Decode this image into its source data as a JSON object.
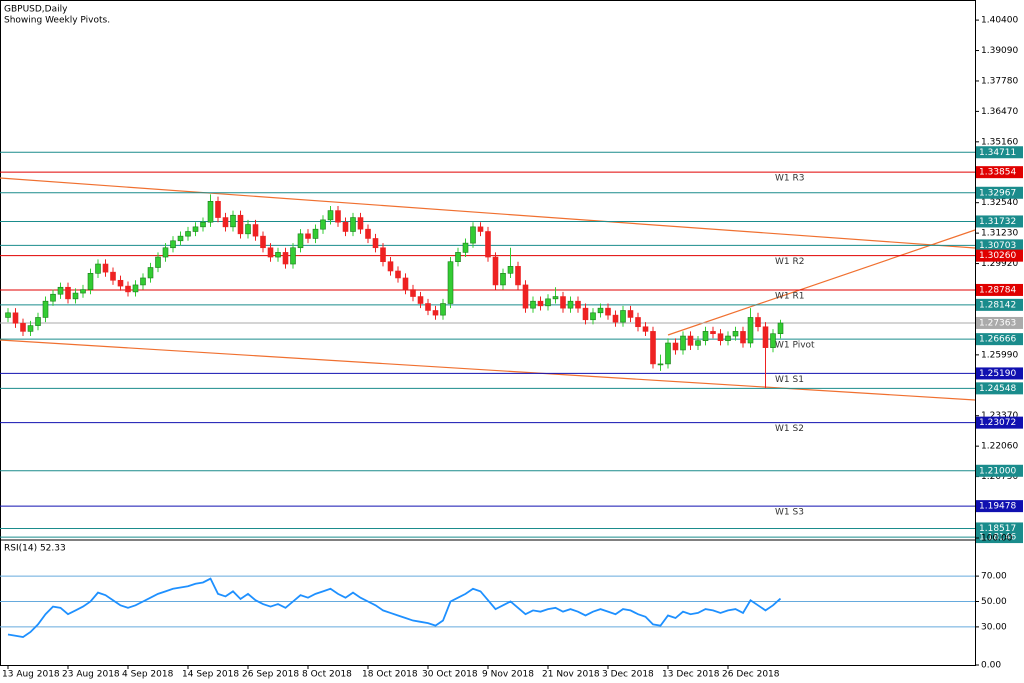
{
  "chart_data": [
    {
      "type": "candlestick",
      "title": "GBPUSD,Daily",
      "subtitle": "Showing Weekly Pivots.",
      "up_color": "#33cc33",
      "down_color": "#ee2222",
      "ylim": [
        1.1802,
        1.4105
      ],
      "yticks": [
        {
          "value": 1.404,
          "label": "1.40400"
        },
        {
          "value": 1.3909,
          "label": "1.39090"
        },
        {
          "value": 1.3778,
          "label": "1.37780"
        },
        {
          "value": 1.3647,
          "label": "1.36470"
        },
        {
          "value": 1.3516,
          "label": "1.35160"
        },
        {
          "value": 1.3254,
          "label": "1.32540"
        },
        {
          "value": 1.3123,
          "label": "1.31230"
        },
        {
          "value": 1.2992,
          "label": "1.29920"
        },
        {
          "value": 1.2599,
          "label": "1.25990"
        },
        {
          "value": 1.2337,
          "label": "1.23370"
        },
        {
          "value": 1.2206,
          "label": "1.22060"
        },
        {
          "value": 1.2075,
          "label": "1.20750"
        }
      ],
      "levels": [
        {
          "value": 1.34711,
          "label": "1.34711",
          "color": "#1a8c8c"
        },
        {
          "value": 1.33854,
          "label": "1.33854",
          "color": "#e00000",
          "name": "W1  R3"
        },
        {
          "value": 1.32967,
          "label": "1.32967",
          "color": "#1a8c8c"
        },
        {
          "value": 1.31732,
          "label": "1.31732",
          "color": "#1a8c8c"
        },
        {
          "value": 1.30703,
          "label": "1.30703",
          "color": "#1a8c8c"
        },
        {
          "value": 1.3026,
          "label": "1.30260",
          "color": "#e00000",
          "name": "W1  R2"
        },
        {
          "value": 1.28784,
          "label": "1.28784",
          "color": "#e00000",
          "name": "W1  R1"
        },
        {
          "value": 1.28142,
          "label": "1.28142",
          "color": "#1a8c8c"
        },
        {
          "value": 1.27363,
          "label": "1.27363",
          "color": "#aaaaaa"
        },
        {
          "value": 1.26666,
          "label": "1.26666",
          "color": "#1a8c8c",
          "name": "W1  Pivot"
        },
        {
          "value": 1.2519,
          "label": "1.25190",
          "color": "#1010b0",
          "name": "W1  S1"
        },
        {
          "value": 1.24548,
          "label": "1.24548",
          "color": "#1a8c8c"
        },
        {
          "value": 1.23072,
          "label": "1.23072",
          "color": "#1010b0",
          "name": "W1  S2"
        },
        {
          "value": 1.21,
          "label": "1.21000",
          "color": "#1a8c8c"
        },
        {
          "value": 1.19478,
          "label": "1.19478",
          "color": "#1010b0",
          "name": "W1  S3"
        },
        {
          "value": 1.18517,
          "label": "1.18517",
          "color": "#1a8c8c"
        },
        {
          "value": 1.18146,
          "label": "1.18146",
          "color": "#1a8c8c"
        }
      ],
      "categories": [
        "13 Aug 2018",
        null,
        null,
        null,
        null,
        null,
        null,
        null,
        "23 Aug 2018",
        null,
        null,
        null,
        null,
        null,
        null,
        null,
        "4 Sep 2018",
        null,
        null,
        null,
        null,
        null,
        null,
        null,
        "14 Sep 2018",
        null,
        null,
        null,
        null,
        null,
        null,
        null,
        "26 Sep 2018",
        null,
        null,
        null,
        null,
        null,
        null,
        null,
        "8 Oct 2018",
        null,
        null,
        null,
        null,
        null,
        null,
        null,
        "18 Oct 2018",
        null,
        null,
        null,
        null,
        null,
        null,
        null,
        "30 Oct 2018",
        null,
        null,
        null,
        null,
        null,
        null,
        null,
        "9 Nov 2018",
        null,
        null,
        null,
        null,
        null,
        null,
        null,
        "21 Nov 2018",
        null,
        null,
        null,
        null,
        null,
        null,
        null,
        "3 Dec 2018",
        null,
        null,
        null,
        null,
        null,
        null,
        null,
        "13 Dec 2018",
        null,
        null,
        null,
        null,
        null,
        null,
        null,
        "26 Dec 2018",
        null,
        null,
        null,
        null,
        null,
        null,
        null
      ],
      "ohlc": [
        [
          1.276,
          1.28,
          1.274,
          1.278
        ],
        [
          1.278,
          1.28,
          1.2715,
          1.2735
        ],
        [
          1.2735,
          1.2755,
          1.268,
          1.27
        ],
        [
          1.27,
          1.2745,
          1.268,
          1.2725
        ],
        [
          1.2725,
          1.278,
          1.2705,
          1.276
        ],
        [
          1.276,
          1.285,
          1.274,
          1.283
        ],
        [
          1.283,
          1.288,
          1.281,
          1.286
        ],
        [
          1.286,
          1.291,
          1.284,
          1.289
        ],
        [
          1.289,
          1.291,
          1.282,
          1.284
        ],
        [
          1.284,
          1.2885,
          1.282,
          1.2865
        ],
        [
          1.2865,
          1.29,
          1.2845,
          1.288
        ],
        [
          1.288,
          1.297,
          1.286,
          1.295
        ],
        [
          1.295,
          1.301,
          1.293,
          1.299
        ],
        [
          1.299,
          1.301,
          1.2935,
          1.2955
        ],
        [
          1.2955,
          1.2975,
          1.29,
          1.292
        ],
        [
          1.292,
          1.294,
          1.2875,
          1.2895
        ],
        [
          1.2895,
          1.2915,
          1.285,
          1.287
        ],
        [
          1.287,
          1.292,
          1.285,
          1.29
        ],
        [
          1.29,
          1.295,
          1.288,
          1.293
        ],
        [
          1.293,
          1.2995,
          1.291,
          1.2975
        ],
        [
          1.2975,
          1.304,
          1.2955,
          1.302
        ],
        [
          1.302,
          1.308,
          1.3,
          1.306
        ],
        [
          1.306,
          1.311,
          1.304,
          1.309
        ],
        [
          1.309,
          1.313,
          1.307,
          1.311
        ],
        [
          1.311,
          1.315,
          1.309,
          1.313
        ],
        [
          1.313,
          1.317,
          1.311,
          1.315
        ],
        [
          1.315,
          1.319,
          1.313,
          1.317
        ],
        [
          1.317,
          1.329,
          1.315,
          1.326
        ],
        [
          1.326,
          1.328,
          1.317,
          1.319
        ],
        [
          1.319,
          1.321,
          1.313,
          1.315
        ],
        [
          1.315,
          1.322,
          1.313,
          1.32
        ],
        [
          1.32,
          1.322,
          1.31,
          1.312
        ],
        [
          1.312,
          1.318,
          1.31,
          1.316
        ],
        [
          1.316,
          1.318,
          1.309,
          1.311
        ],
        [
          1.311,
          1.313,
          1.304,
          1.306
        ],
        [
          1.306,
          1.308,
          1.3,
          1.302
        ],
        [
          1.302,
          1.306,
          1.3,
          1.304
        ],
        [
          1.304,
          1.306,
          1.297,
          1.299
        ],
        [
          1.299,
          1.308,
          1.297,
          1.306
        ],
        [
          1.306,
          1.314,
          1.304,
          1.312
        ],
        [
          1.312,
          1.314,
          1.308,
          1.31
        ],
        [
          1.31,
          1.316,
          1.308,
          1.314
        ],
        [
          1.314,
          1.32,
          1.312,
          1.318
        ],
        [
          1.318,
          1.324,
          1.316,
          1.322
        ],
        [
          1.322,
          1.324,
          1.315,
          1.317
        ],
        [
          1.317,
          1.319,
          1.311,
          1.313
        ],
        [
          1.313,
          1.321,
          1.311,
          1.319
        ],
        [
          1.319,
          1.321,
          1.312,
          1.314
        ],
        [
          1.314,
          1.316,
          1.308,
          1.31
        ],
        [
          1.31,
          1.312,
          1.304,
          1.306
        ],
        [
          1.306,
          1.308,
          1.298,
          1.3
        ],
        [
          1.3,
          1.302,
          1.294,
          1.296
        ],
        [
          1.296,
          1.298,
          1.291,
          1.293
        ],
        [
          1.293,
          1.295,
          1.286,
          1.288
        ],
        [
          1.288,
          1.29,
          1.283,
          1.285
        ],
        [
          1.285,
          1.287,
          1.28,
          1.282
        ],
        [
          1.282,
          1.284,
          1.277,
          1.279
        ],
        [
          1.279,
          1.281,
          1.275,
          1.277
        ],
        [
          1.277,
          1.284,
          1.275,
          1.282
        ],
        [
          1.282,
          1.302,
          1.28,
          1.3
        ],
        [
          1.3,
          1.306,
          1.298,
          1.304
        ],
        [
          1.304,
          1.31,
          1.302,
          1.308
        ],
        [
          1.308,
          1.317,
          1.306,
          1.315
        ],
        [
          1.315,
          1.317,
          1.311,
          1.313
        ],
        [
          1.313,
          1.315,
          1.3,
          1.302
        ],
        [
          1.302,
          1.304,
          1.288,
          1.29
        ],
        [
          1.29,
          1.297,
          1.288,
          1.295
        ],
        [
          1.295,
          1.306,
          1.293,
          1.298
        ],
        [
          1.298,
          1.3,
          1.288,
          1.29
        ],
        [
          1.29,
          1.292,
          1.278,
          1.28
        ],
        [
          1.28,
          1.285,
          1.278,
          1.283
        ],
        [
          1.283,
          1.285,
          1.279,
          1.281
        ],
        [
          1.281,
          1.286,
          1.279,
          1.284
        ],
        [
          1.284,
          1.289,
          1.282,
          1.285
        ],
        [
          1.285,
          1.287,
          1.278,
          1.28
        ],
        [
          1.28,
          1.285,
          1.278,
          1.283
        ],
        [
          1.283,
          1.285,
          1.278,
          1.28
        ],
        [
          1.28,
          1.282,
          1.273,
          1.275
        ],
        [
          1.275,
          1.28,
          1.273,
          1.278
        ],
        [
          1.278,
          1.282,
          1.276,
          1.28
        ],
        [
          1.28,
          1.282,
          1.275,
          1.277
        ],
        [
          1.277,
          1.279,
          1.272,
          1.274
        ],
        [
          1.274,
          1.281,
          1.272,
          1.279
        ],
        [
          1.279,
          1.281,
          1.274,
          1.276
        ],
        [
          1.276,
          1.278,
          1.27,
          1.272
        ],
        [
          1.272,
          1.274,
          1.268,
          1.27
        ],
        [
          1.27,
          1.272,
          1.254,
          1.256
        ],
        [
          1.256,
          1.26,
          1.253,
          1.256
        ],
        [
          1.256,
          1.267,
          1.254,
          1.265
        ],
        [
          1.265,
          1.267,
          1.26,
          1.262
        ],
        [
          1.262,
          1.27,
          1.26,
          1.268
        ],
        [
          1.268,
          1.27,
          1.262,
          1.264
        ],
        [
          1.264,
          1.268,
          1.262,
          1.266
        ],
        [
          1.266,
          1.272,
          1.264,
          1.27
        ],
        [
          1.27,
          1.272,
          1.267,
          1.269
        ],
        [
          1.269,
          1.271,
          1.264,
          1.266
        ],
        [
          1.266,
          1.27,
          1.264,
          1.268
        ],
        [
          1.268,
          1.272,
          1.266,
          1.27
        ],
        [
          1.27,
          1.272,
          1.263,
          1.265
        ],
        [
          1.265,
          1.28,
          1.263,
          1.276
        ],
        [
          1.276,
          1.278,
          1.27,
          1.272
        ],
        [
          1.272,
          1.274,
          1.2455,
          1.263
        ],
        [
          1.263,
          1.271,
          1.261,
          1.269
        ],
        [
          1.269,
          1.275,
          1.267,
          1.2736
        ]
      ]
    },
    {
      "type": "line",
      "title": "RSI(14) 52.33",
      "color": "#1e90ff",
      "level_color": "#66aadd",
      "ylim": [
        0,
        100
      ],
      "yticks": [
        {
          "value": 100,
          "label": "100.00"
        },
        {
          "value": 70,
          "label": "70.00"
        },
        {
          "value": 50,
          "label": "50.00"
        },
        {
          "value": 30,
          "label": "30.00"
        },
        {
          "value": 0,
          "label": "0.00"
        }
      ],
      "levels": [
        70,
        50,
        30
      ],
      "values": [
        24,
        23,
        22,
        26,
        32,
        40,
        46,
        45,
        40,
        43,
        46,
        50,
        57,
        55,
        51,
        47,
        45,
        47,
        50,
        53,
        56,
        58,
        60,
        61,
        62,
        64,
        65,
        68,
        56,
        54,
        58,
        52,
        56,
        51,
        48,
        46,
        48,
        45,
        50,
        55,
        53,
        56,
        58,
        60,
        56,
        53,
        57,
        53,
        50,
        47,
        43,
        41,
        39,
        37,
        35,
        34,
        33,
        31,
        35,
        50,
        53,
        56,
        60,
        58,
        51,
        44,
        47,
        50,
        45,
        40,
        43,
        42,
        44,
        45,
        42,
        44,
        42,
        39,
        42,
        44,
        42,
        40,
        44,
        43,
        40,
        38,
        32,
        31,
        39,
        37,
        42,
        40,
        41,
        44,
        43,
        41,
        43,
        44,
        41,
        51,
        47,
        43,
        47,
        52.33
      ]
    }
  ]
}
